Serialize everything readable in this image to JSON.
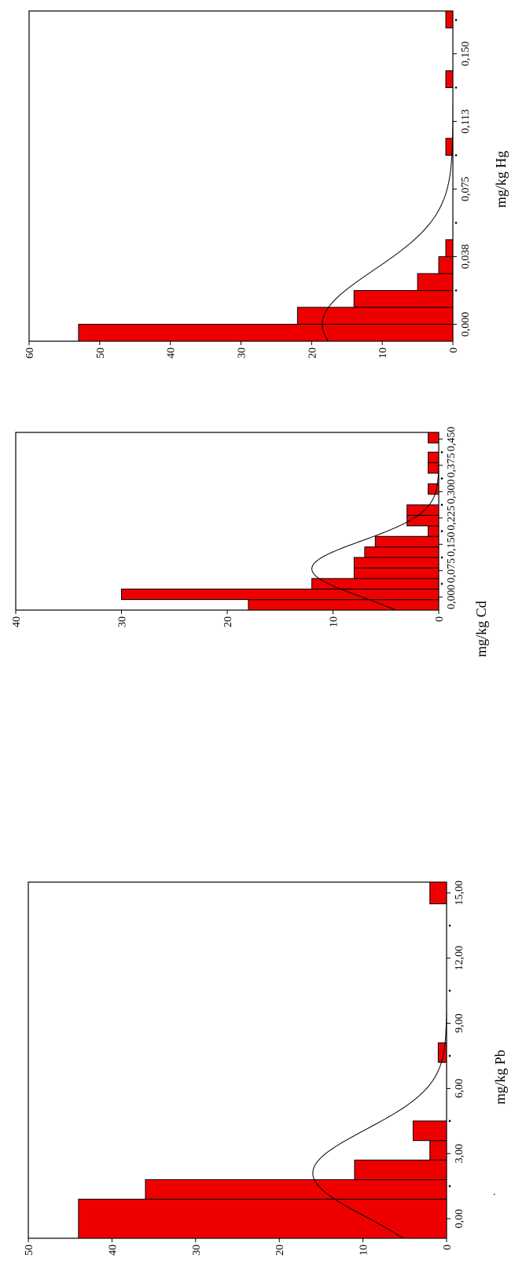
{
  "chart_data": [
    {
      "type": "bar",
      "subtype": "histogram",
      "orientation": "rotated-90-counterclockwise",
      "xlabel": "mg/kg Hg",
      "ylabel": "",
      "ylim": [
        0,
        60
      ],
      "yticks": [
        "0",
        "10",
        "20",
        "30",
        "40",
        "50",
        "60"
      ],
      "xlim": [
        -0.0094,
        0.1737
      ],
      "xtick_values": [
        0.0,
        0.0375,
        0.075,
        0.1125,
        0.15
      ],
      "xticks": [
        "0,000",
        "0,038",
        "0,075",
        "0,113",
        "0,150"
      ],
      "bins": [
        {
          "start": -0.0094,
          "end": 0.0,
          "value": 53
        },
        {
          "start": 0.0,
          "end": 0.0094,
          "value": 22
        },
        {
          "start": 0.0094,
          "end": 0.0187,
          "value": 14
        },
        {
          "start": 0.0187,
          "end": 0.0281,
          "value": 5
        },
        {
          "start": 0.0281,
          "end": 0.0375,
          "value": 2
        },
        {
          "start": 0.0375,
          "end": 0.0469,
          "value": 1
        },
        {
          "start": 0.0937,
          "end": 0.1031,
          "value": 1
        },
        {
          "start": 0.1312,
          "end": 0.1406,
          "value": 1
        },
        {
          "start": 0.1643,
          "end": 0.1737,
          "value": 1
        }
      ],
      "normal_curve": {
        "mean": 0.0,
        "sd": 0.03,
        "peak": 18.5
      },
      "bar_color": "#ee0000",
      "grid": false,
      "legend": "none"
    },
    {
      "type": "bar",
      "subtype": "histogram",
      "orientation": "rotated-90-counterclockwise",
      "xlabel": "mg/kg Cd",
      "ylabel": "",
      "ylim": [
        0,
        40
      ],
      "yticks": [
        "0",
        "10",
        "20",
        "30",
        "40"
      ],
      "xlim": [
        -0.0375,
        0.4688
      ],
      "xtick_values": [
        0.0,
        0.075,
        0.15,
        0.225,
        0.3,
        0.375,
        0.45
      ],
      "xticks": [
        "0,000",
        "0,075",
        "0,150",
        "0,225",
        "0,300",
        "0,375",
        "0,450"
      ],
      "bins": [
        {
          "start": -0.0375,
          "end": -0.0075,
          "value": 18
        },
        {
          "start": -0.0075,
          "end": 0.0225,
          "value": 30
        },
        {
          "start": 0.0225,
          "end": 0.0525,
          "value": 12
        },
        {
          "start": 0.0525,
          "end": 0.0825,
          "value": 8
        },
        {
          "start": 0.0825,
          "end": 0.1125,
          "value": 8
        },
        {
          "start": 0.1125,
          "end": 0.1425,
          "value": 7
        },
        {
          "start": 0.1425,
          "end": 0.1725,
          "value": 6
        },
        {
          "start": 0.1725,
          "end": 0.2025,
          "value": 1
        },
        {
          "start": 0.2025,
          "end": 0.2325,
          "value": 3
        },
        {
          "start": 0.2325,
          "end": 0.2625,
          "value": 3
        },
        {
          "start": 0.2925,
          "end": 0.3225,
          "value": 1
        },
        {
          "start": 0.3525,
          "end": 0.3825,
          "value": 1
        },
        {
          "start": 0.3825,
          "end": 0.4125,
          "value": 1
        },
        {
          "start": 0.4388,
          "end": 0.4688,
          "value": 1
        }
      ],
      "normal_curve": {
        "mean": 0.08,
        "sd": 0.08,
        "peak": 12
      },
      "bar_color": "#ee0000",
      "grid": false,
      "legend": "none"
    },
    {
      "type": "bar",
      "subtype": "histogram",
      "orientation": "rotated-90-counterclockwise",
      "xlabel": "mg/kg Pb",
      "ylabel": "",
      "ylim": [
        0,
        50
      ],
      "yticks": [
        "0",
        "10",
        "20",
        "30",
        "40",
        "50"
      ],
      "xlim": [
        -0.9,
        15.5
      ],
      "xtick_values": [
        0,
        3,
        6,
        9,
        12,
        15
      ],
      "xticks": [
        "0,00",
        "3,00",
        "6,00",
        "9,00",
        "12,00",
        "15,00"
      ],
      "bins": [
        {
          "start": -0.9,
          "end": 0.9,
          "value": 44
        },
        {
          "start": 0.9,
          "end": 1.8,
          "value": 36
        },
        {
          "start": 1.8,
          "end": 2.7,
          "value": 11
        },
        {
          "start": 2.7,
          "end": 3.6,
          "value": 2
        },
        {
          "start": 3.6,
          "end": 4.5,
          "value": 4
        },
        {
          "start": 7.2,
          "end": 8.1,
          "value": 1
        },
        {
          "start": 14.5,
          "end": 15.5,
          "value": 2
        }
      ],
      "normal_curve": {
        "mean": 2.1,
        "sd": 2.0,
        "peak": 16
      },
      "bar_color": "#ee0000",
      "grid": false,
      "legend": "none"
    }
  ]
}
